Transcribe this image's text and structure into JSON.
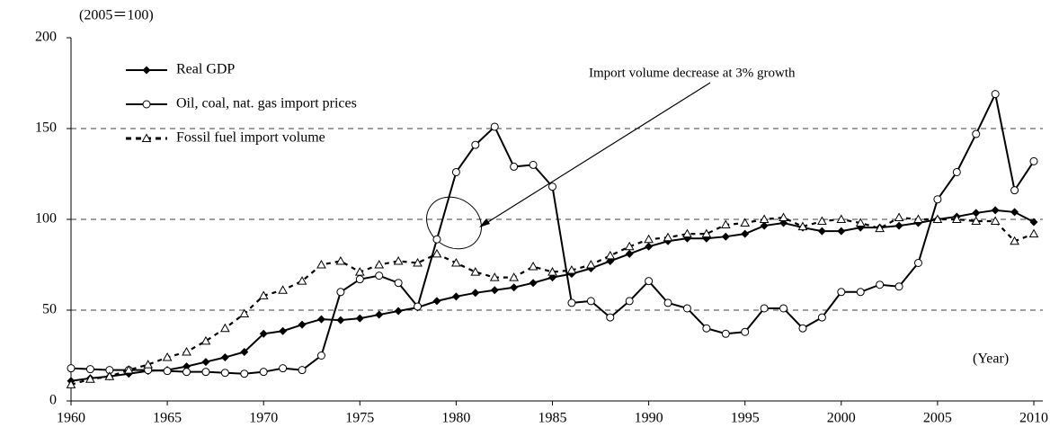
{
  "chart_data": {
    "type": "line",
    "unit_label": "(2005＝100)",
    "x_axis_label": "(Year)",
    "annotation": "Import volume decrease at 3% growth",
    "x": [
      1960,
      1961,
      1962,
      1963,
      1964,
      1965,
      1966,
      1967,
      1968,
      1969,
      1970,
      1971,
      1972,
      1973,
      1974,
      1975,
      1976,
      1977,
      1978,
      1979,
      1980,
      1981,
      1982,
      1983,
      1984,
      1985,
      1986,
      1987,
      1988,
      1989,
      1990,
      1991,
      1992,
      1993,
      1994,
      1995,
      1996,
      1997,
      1998,
      1999,
      2000,
      2001,
      2002,
      2003,
      2004,
      2005,
      2006,
      2007,
      2008,
      2009,
      2010
    ],
    "xlim": [
      1960,
      2010
    ],
    "xticks": [
      1960,
      1965,
      1970,
      1975,
      1980,
      1985,
      1990,
      1995,
      2000,
      2005,
      2010
    ],
    "ylim": [
      0,
      200
    ],
    "yticks": [
      0,
      50,
      100,
      150,
      200
    ],
    "grid": true,
    "series": [
      {
        "name": "Real GDP",
        "color": "#000000",
        "marker": "diamond",
        "dash": "solid",
        "values": [
          11,
          12.5,
          13.5,
          15,
          16.5,
          17,
          19,
          21.5,
          24,
          27,
          37,
          38.5,
          42,
          45,
          44.5,
          45.5,
          47.5,
          49.5,
          51.5,
          55,
          57.5,
          59.5,
          61,
          62.5,
          65,
          68,
          70,
          73,
          77,
          81,
          85,
          88,
          89.5,
          89.5,
          90.5,
          92,
          96.5,
          98,
          95.5,
          93.5,
          93.5,
          95.5,
          95.5,
          96.5,
          98,
          100,
          101.5,
          103.5,
          105,
          104,
          98.5
        ]
      },
      {
        "name": "Oil, coal, nat. gas import prices",
        "color": "#000000",
        "marker": "circle",
        "dash": "solid",
        "values": [
          18,
          17.5,
          17,
          17,
          17,
          16.5,
          16,
          16,
          15.5,
          15,
          16,
          18,
          17,
          25,
          60,
          67,
          69,
          65,
          52,
          89,
          126,
          141,
          151,
          129,
          130,
          118,
          54,
          55,
          46,
          55,
          66,
          54,
          51,
          40,
          37,
          38,
          51,
          51,
          40,
          46,
          60,
          60,
          64,
          63,
          76,
          111,
          126,
          147,
          169,
          116,
          132
        ]
      },
      {
        "name": "Fossil fuel import volume",
        "color": "#000000",
        "marker": "triangle",
        "dash": "dashed",
        "values": [
          9,
          12,
          13.5,
          17,
          20,
          24,
          27,
          33,
          40,
          48,
          58,
          61,
          66,
          75,
          77,
          71,
          75,
          77,
          76,
          81,
          76,
          71,
          68,
          68,
          74,
          71,
          72,
          75,
          80,
          85,
          89,
          90,
          92,
          92,
          97,
          98,
          100,
          101,
          96,
          99,
          100,
          98,
          95,
          101,
          100,
          100,
          100,
          99,
          99,
          88,
          92
        ]
      }
    ]
  }
}
